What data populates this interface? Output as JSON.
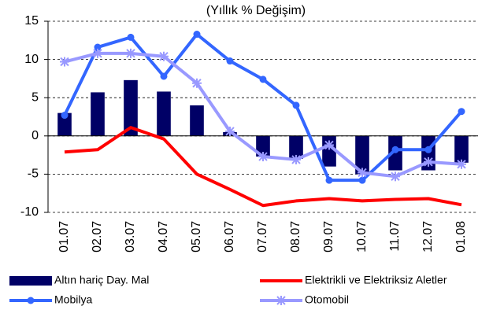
{
  "chart_data": {
    "type": "bar",
    "title": "(Yıllık % Değişim)",
    "categories": [
      "01.07",
      "02.07",
      "03.07",
      "04.07",
      "05.07",
      "06.07",
      "07.07",
      "08.07",
      "09.07",
      "10.07",
      "11.07",
      "12.07",
      "01.08"
    ],
    "ylim": [
      -10,
      15
    ],
    "yticks": [
      -10,
      -5,
      0,
      5,
      10,
      15
    ],
    "grid": true,
    "series": [
      {
        "name": "Altın hariç Day. Mal",
        "type": "bar",
        "color": "#000066",
        "values": [
          3.0,
          5.7,
          7.3,
          5.8,
          4.0,
          0.5,
          -2.7,
          -3.0,
          -4.0,
          -5.0,
          -4.5,
          -4.5,
          -3.5
        ]
      },
      {
        "name": "Elektrikli ve Elektriksiz Aletler",
        "type": "line",
        "color": "#ff0000",
        "values": [
          -2.1,
          -1.8,
          1.1,
          -0.4,
          -5.0,
          -7.0,
          -9.1,
          -8.5,
          -8.2,
          -8.5,
          -8.3,
          -8.2,
          -9.0
        ]
      },
      {
        "name": "Mobilya",
        "type": "line",
        "marker": "circle",
        "color": "#3366ff",
        "values": [
          2.7,
          11.6,
          12.9,
          7.8,
          13.3,
          9.8,
          7.4,
          4.0,
          -5.8,
          -5.8,
          -1.8,
          -1.8,
          3.2
        ]
      },
      {
        "name": "Otomobil",
        "type": "line",
        "marker": "asterisk",
        "color": "#9999ff",
        "values": [
          9.7,
          10.8,
          10.8,
          10.4,
          6.9,
          0.6,
          -2.7,
          -3.1,
          -1.2,
          -4.8,
          -5.3,
          -3.4,
          -3.7
        ]
      }
    ]
  }
}
